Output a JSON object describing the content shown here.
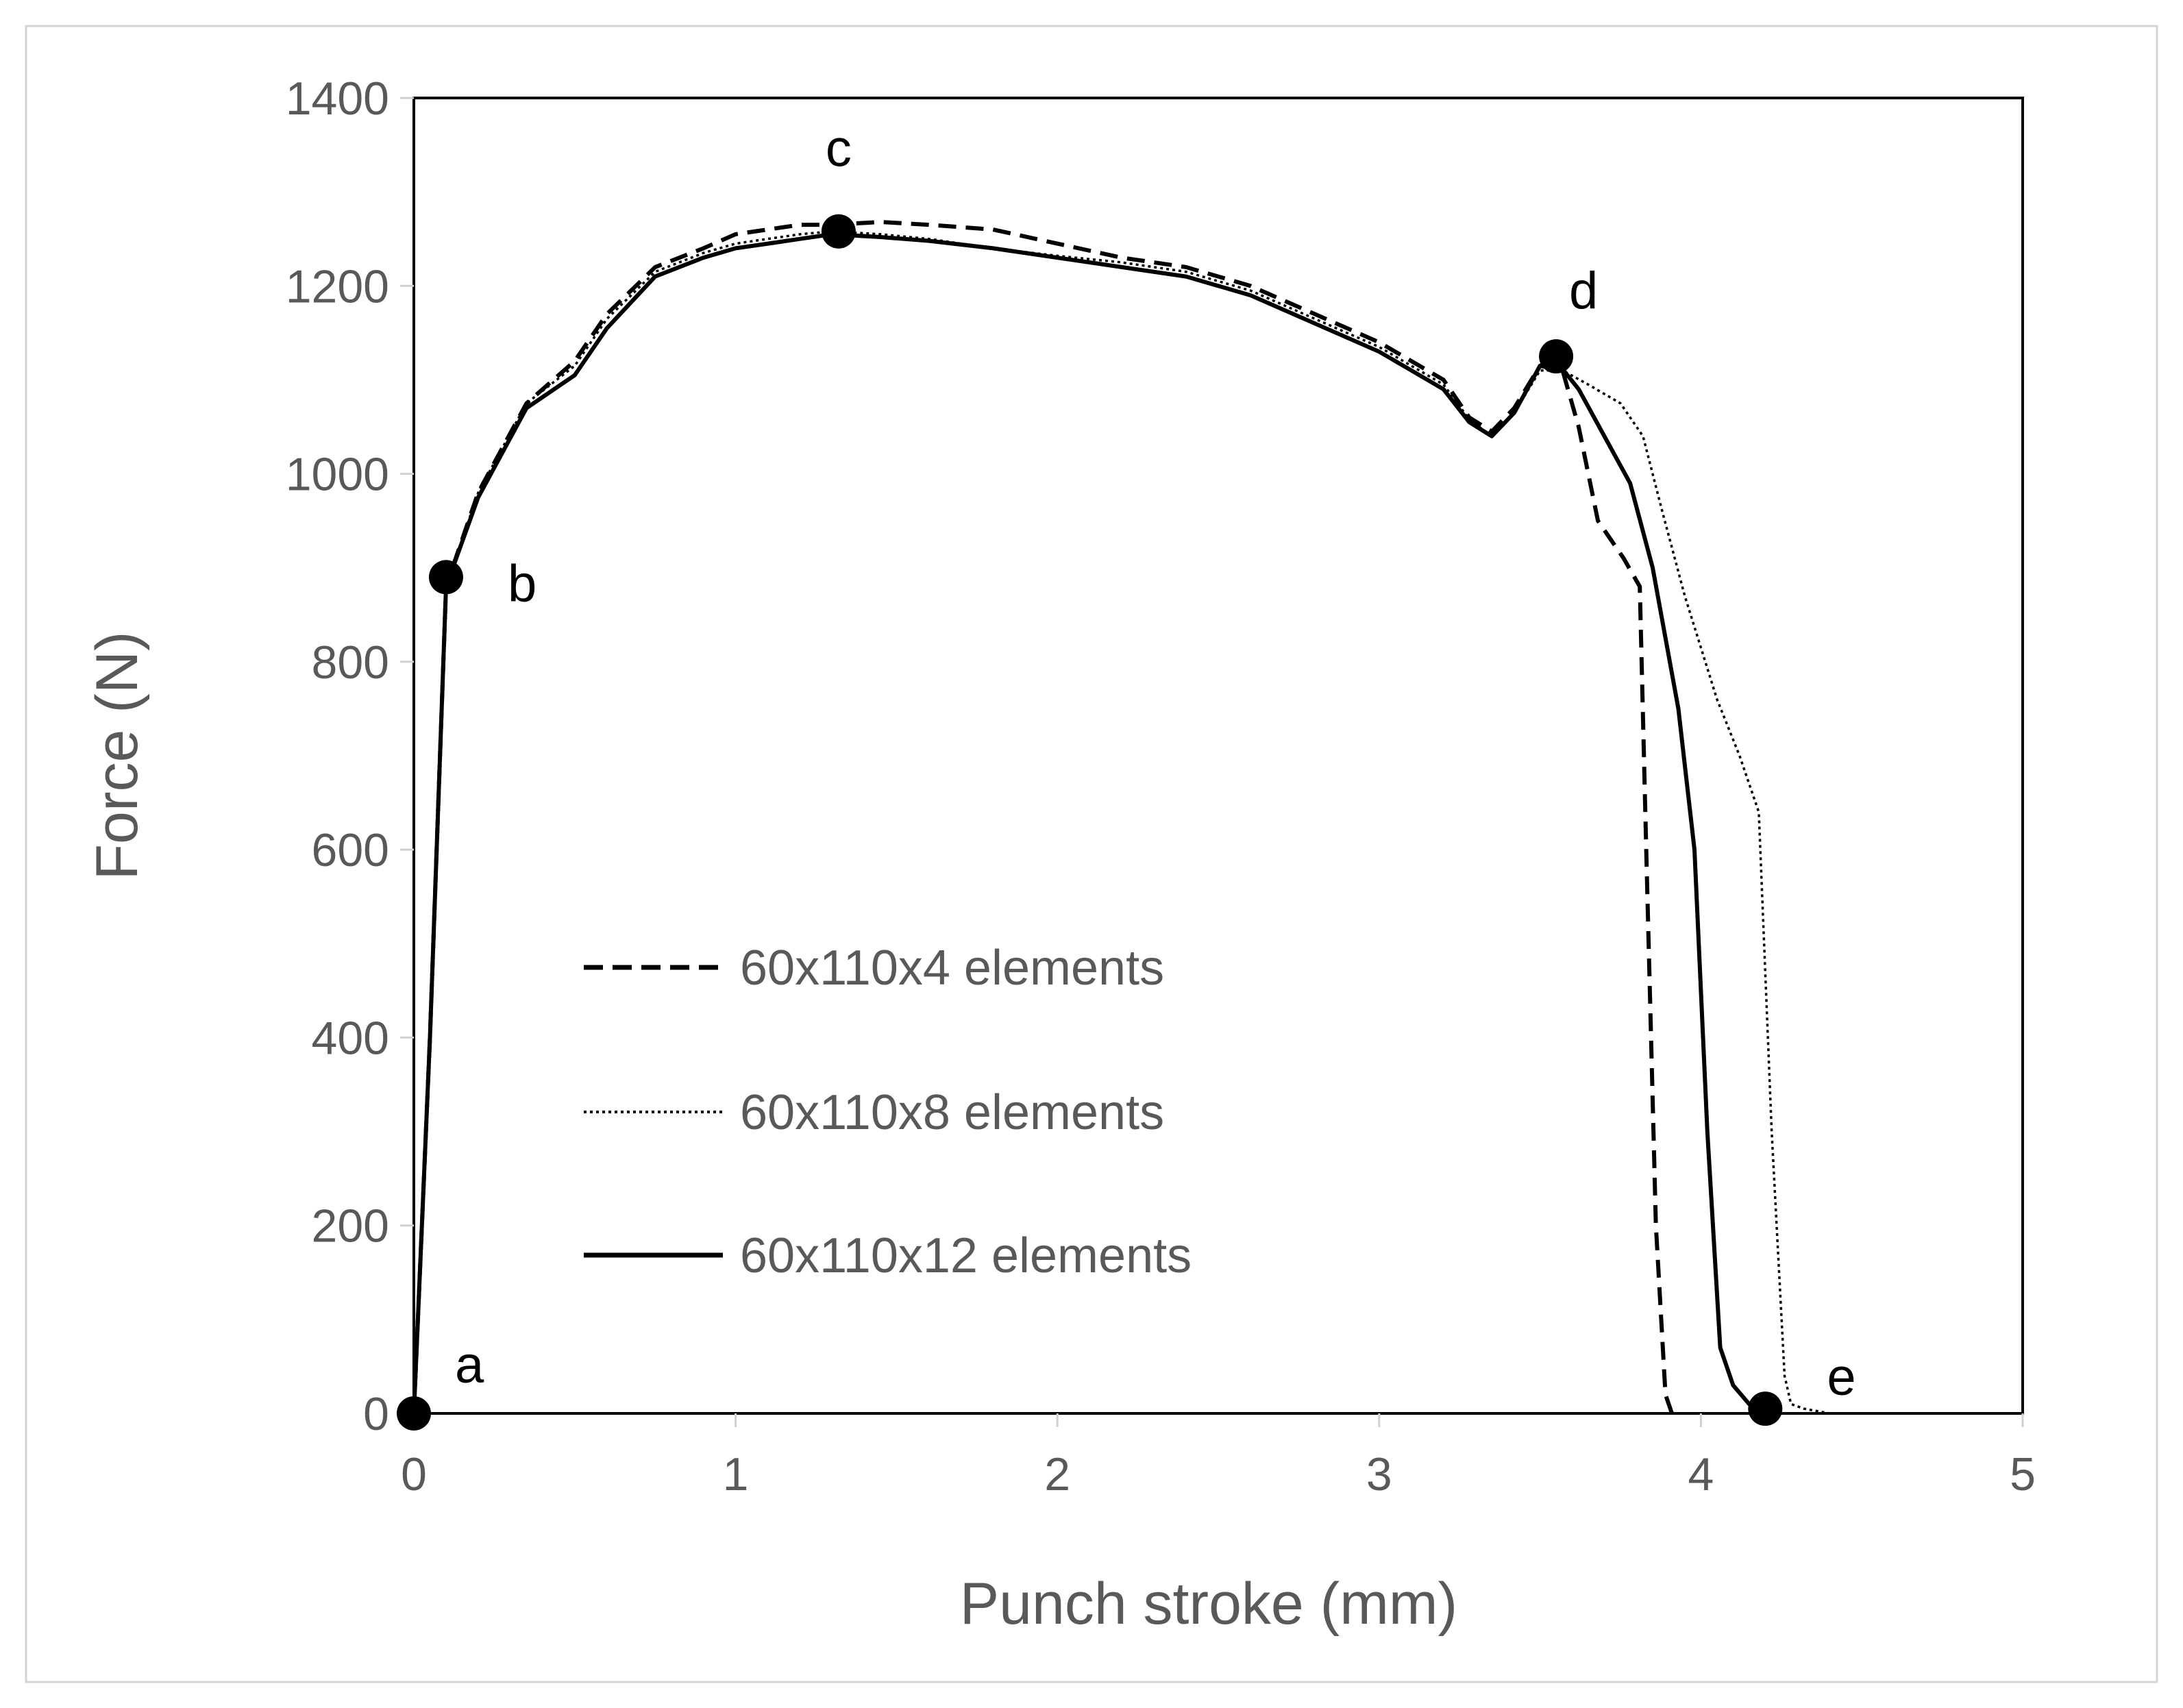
{
  "chart_data": {
    "type": "line",
    "title": "",
    "xlabel": "Punch stroke (mm)",
    "ylabel": "Force (N)",
    "xlim": [
      0,
      5
    ],
    "ylim": [
      0,
      1400
    ],
    "x_ticks": [
      "0",
      "1",
      "2",
      "3",
      "4",
      "5"
    ],
    "y_ticks": [
      "0",
      "200",
      "400",
      "600",
      "800",
      "1000",
      "1200",
      "1400"
    ],
    "grid": false,
    "legend_position": "center-left",
    "series": [
      {
        "name": "60x110x4 elements",
        "line_style": "dashed",
        "x": [
          0,
          0.05,
          0.1,
          0.2,
          0.35,
          0.5,
          0.6,
          0.75,
          0.9,
          1.0,
          1.1,
          1.2,
          1.3,
          1.45,
          1.6,
          1.8,
          2.0,
          2.2,
          2.4,
          2.6,
          2.8,
          3.0,
          3.1,
          3.2,
          3.28,
          3.35,
          3.42,
          3.5,
          3.57,
          3.62,
          3.68,
          3.72,
          3.76,
          3.81,
          3.83,
          3.86,
          3.89,
          3.91
        ],
        "y": [
          0,
          400,
          880,
          980,
          1075,
          1120,
          1170,
          1220,
          1240,
          1255,
          1260,
          1265,
          1265,
          1268,
          1265,
          1260,
          1245,
          1230,
          1220,
          1200,
          1170,
          1140,
          1120,
          1100,
          1060,
          1045,
          1070,
          1115,
          1110,
          1050,
          950,
          930,
          910,
          880,
          600,
          200,
          20,
          0
        ]
      },
      {
        "name": "60x110x8 elements",
        "line_style": "dotted",
        "x": [
          0,
          0.05,
          0.1,
          0.2,
          0.35,
          0.5,
          0.6,
          0.75,
          0.9,
          1.0,
          1.1,
          1.2,
          1.3,
          1.45,
          1.6,
          1.8,
          2.0,
          2.2,
          2.4,
          2.6,
          2.8,
          3.0,
          3.1,
          3.2,
          3.28,
          3.35,
          3.42,
          3.5,
          3.57,
          3.65,
          3.75,
          3.82,
          3.88,
          3.95,
          4.05,
          4.12,
          4.18,
          4.22,
          4.26,
          4.28,
          4.32,
          4.4
        ],
        "y": [
          0,
          400,
          880,
          980,
          1075,
          1115,
          1165,
          1215,
          1235,
          1245,
          1250,
          1255,
          1258,
          1255,
          1250,
          1240,
          1232,
          1225,
          1215,
          1195,
          1165,
          1135,
          1115,
          1095,
          1058,
          1040,
          1065,
          1110,
          1110,
          1095,
          1075,
          1040,
          960,
          870,
          760,
          700,
          640,
          300,
          40,
          10,
          5,
          0
        ]
      },
      {
        "name": "60x110x12 elements",
        "line_style": "solid",
        "x": [
          0,
          0.05,
          0.1,
          0.2,
          0.35,
          0.5,
          0.6,
          0.75,
          0.9,
          1.0,
          1.1,
          1.2,
          1.3,
          1.45,
          1.6,
          1.8,
          2.0,
          2.2,
          2.4,
          2.6,
          2.8,
          3.0,
          3.1,
          3.2,
          3.28,
          3.35,
          3.42,
          3.5,
          3.55,
          3.62,
          3.7,
          3.78,
          3.85,
          3.93,
          3.98,
          4.02,
          4.06,
          4.1,
          4.15,
          4.2
        ],
        "y": [
          0,
          400,
          880,
          975,
          1070,
          1105,
          1155,
          1210,
          1230,
          1240,
          1245,
          1250,
          1255,
          1252,
          1248,
          1240,
          1230,
          1220,
          1210,
          1190,
          1160,
          1130,
          1110,
          1090,
          1055,
          1040,
          1065,
          1115,
          1120,
          1090,
          1040,
          990,
          900,
          750,
          600,
          300,
          70,
          30,
          10,
          0
        ]
      }
    ],
    "annotations": [
      {
        "label": "a",
        "x": 0,
        "y": 0
      },
      {
        "label": "b",
        "x": 0.1,
        "y": 890
      },
      {
        "label": "c",
        "x": 1.32,
        "y": 1258
      },
      {
        "label": "d",
        "x": 3.55,
        "y": 1125
      },
      {
        "label": "e",
        "x": 4.2,
        "y": 5
      }
    ]
  }
}
